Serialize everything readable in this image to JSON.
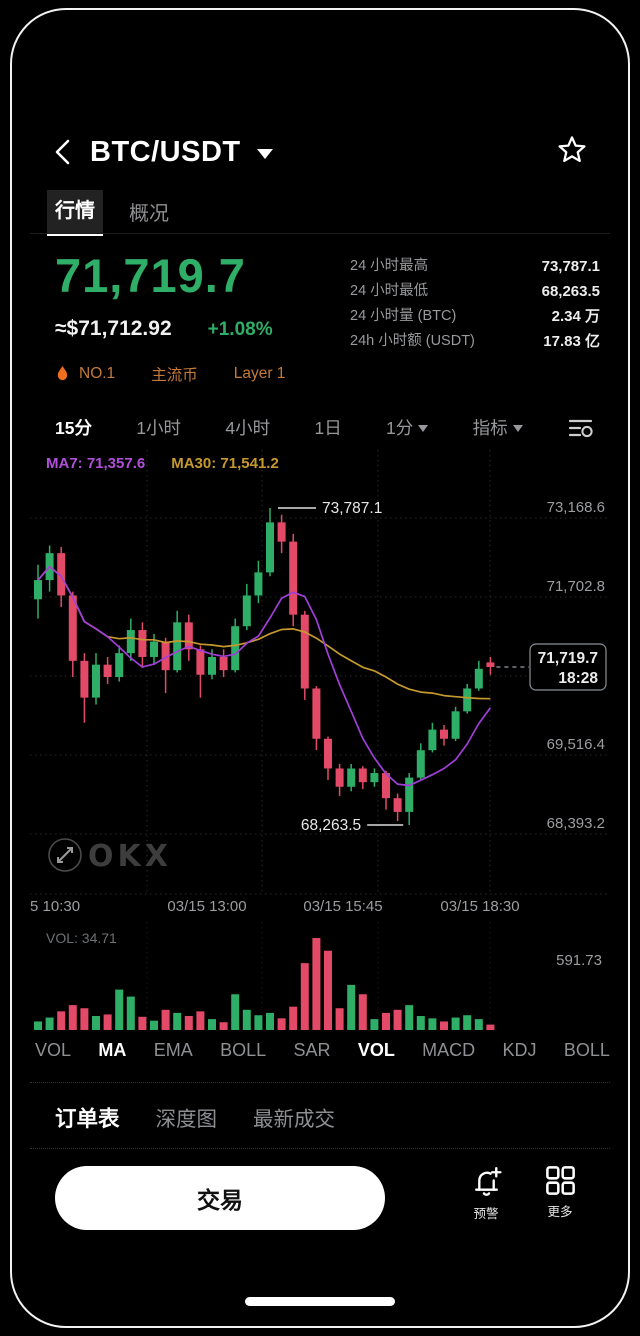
{
  "header": {
    "title": "BTC/USDT"
  },
  "tabs": [
    {
      "label": "行情",
      "active": true
    },
    {
      "label": "概况",
      "active": false
    }
  ],
  "price": {
    "last": "71,719.7",
    "fiat": "≈$71,712.92",
    "change": "+1.08%"
  },
  "stats": [
    {
      "label": "24 小时最高",
      "value": "73,787.1"
    },
    {
      "label": "24 小时最低",
      "value": "68,263.5"
    },
    {
      "label": "24 小时量 (BTC)",
      "value": "2.34 万"
    },
    {
      "label": "24h 小时额 (USDT)",
      "value": "17.83 亿"
    }
  ],
  "badges": {
    "rank": "NO.1",
    "tags": [
      "主流币",
      "Layer 1"
    ]
  },
  "timeframes": [
    {
      "label": "15分",
      "active": true
    },
    {
      "label": "1小时",
      "active": false
    },
    {
      "label": "4小时",
      "active": false
    },
    {
      "label": "1日",
      "active": false
    },
    {
      "label": "1分",
      "active": false,
      "dropdown": true
    },
    {
      "label": "指标",
      "active": false,
      "dropdown": true
    }
  ],
  "chart_data": {
    "type": "candlestick",
    "interval": "15分",
    "ma_labels": [
      {
        "text": "MA7: 71,357.6",
        "color": "#b04fd8"
      },
      {
        "text": "MA30: 71,541.2",
        "color": "#c5992e"
      }
    ],
    "y_axis_labels": [
      "73,168.6",
      "71,702.8",
      "69,516.4",
      "68,393.2"
    ],
    "x_axis_labels": [
      "5 10:30",
      "03/15 13:00",
      "03/15 15:45",
      "03/15 18:30"
    ],
    "high_value": 73787.1,
    "high_label": "73,787.1",
    "low_value": 68263.5,
    "low_label": "68,263.5",
    "last_value": 71719.7,
    "last_label": "71,719.7",
    "last_time": "18:28",
    "watermark": "OKX",
    "vol_label": "VOL: 34.71",
    "vol_max_label": "591.73",
    "vol_max_value": 591.73,
    "colors": {
      "up": "#2fae68",
      "down": "#e24a67",
      "ma7": "#a13fd9",
      "ma30": "#c5992e",
      "grid": "rgba(130,140,165,0.30)"
    },
    "candles": [
      [
        72600,
        73050,
        72350,
        72850
      ],
      [
        72850,
        73300,
        72700,
        73200
      ],
      [
        73200,
        73280,
        72500,
        72650
      ],
      [
        72650,
        72700,
        71500,
        71800
      ],
      [
        71800,
        71900,
        70500,
        71050
      ],
      [
        71050,
        71900,
        70900,
        71750
      ],
      [
        71750,
        71850,
        71350,
        71500
      ],
      [
        71500,
        72000,
        71400,
        71900
      ],
      [
        71900,
        72350,
        71800,
        72200
      ],
      [
        72200,
        72300,
        71700,
        71850
      ],
      [
        71850,
        72150,
        71750,
        72050
      ],
      [
        72050,
        72100,
        71150,
        71650
      ],
      [
        71650,
        72450,
        71600,
        72300
      ],
      [
        72300,
        72400,
        71800,
        71950
      ],
      [
        71950,
        72000,
        71050,
        71550
      ],
      [
        71550,
        71950,
        71450,
        71850
      ],
      [
        71850,
        71950,
        71500,
        71650
      ],
      [
        71650,
        72350,
        71600,
        72250
      ],
      [
        72250,
        72800,
        72200,
        72650
      ],
      [
        72650,
        73100,
        72550,
        72950
      ],
      [
        72950,
        73787.1,
        72900,
        73600
      ],
      [
        73600,
        73700,
        73200,
        73350
      ],
      [
        73350,
        73450,
        72250,
        72400
      ],
      [
        72400,
        72450,
        71000,
        71250
      ],
      [
        71250,
        71300,
        69900,
        70150
      ],
      [
        70150,
        70200,
        69250,
        69500
      ],
      [
        69500,
        69600,
        68900,
        69100
      ],
      [
        69100,
        69600,
        69000,
        69500
      ],
      [
        69500,
        69550,
        69050,
        69200
      ],
      [
        69200,
        69500,
        69100,
        69400
      ],
      [
        69400,
        69450,
        68600,
        68850
      ],
      [
        68850,
        68950,
        68350,
        68550
      ],
      [
        68550,
        69400,
        68263.5,
        69300
      ],
      [
        69300,
        70050,
        69250,
        69900
      ],
      [
        69900,
        70500,
        69850,
        70350
      ],
      [
        70350,
        70450,
        70000,
        70150
      ],
      [
        70150,
        70850,
        70100,
        70750
      ],
      [
        70750,
        71350,
        70700,
        71250
      ],
      [
        71250,
        71800,
        71200,
        71680
      ],
      [
        71780,
        71850,
        71550,
        71719.7
      ]
    ],
    "volumes": [
      55,
      80,
      120,
      160,
      140,
      90,
      100,
      260,
      215,
      85,
      60,
      130,
      110,
      90,
      120,
      70,
      50,
      230,
      130,
      95,
      110,
      75,
      150,
      430,
      591.73,
      510,
      140,
      290,
      230,
      70,
      110,
      130,
      160,
      90,
      75,
      55,
      80,
      95,
      70,
      34.71
    ]
  },
  "indicators": [
    {
      "label": "VOL",
      "active": false
    },
    {
      "label": "MA",
      "active": true
    },
    {
      "label": "EMA",
      "active": false
    },
    {
      "label": "BOLL",
      "active": false
    },
    {
      "label": "SAR",
      "active": false
    },
    {
      "label": "VOL",
      "active": true
    },
    {
      "label": "MACD",
      "active": false
    },
    {
      "label": "KDJ",
      "active": false
    },
    {
      "label": "BOLL",
      "active": false
    }
  ],
  "bottom_tabs": [
    {
      "label": "订单表",
      "active": true
    },
    {
      "label": "深度图",
      "active": false
    },
    {
      "label": "最新成交",
      "active": false
    }
  ],
  "actions": {
    "trade": "交易",
    "alert": "预警",
    "more": "更多"
  },
  "accent": {
    "green": "#2fae68",
    "red": "#e24a67",
    "orange": "#c47b3a"
  }
}
